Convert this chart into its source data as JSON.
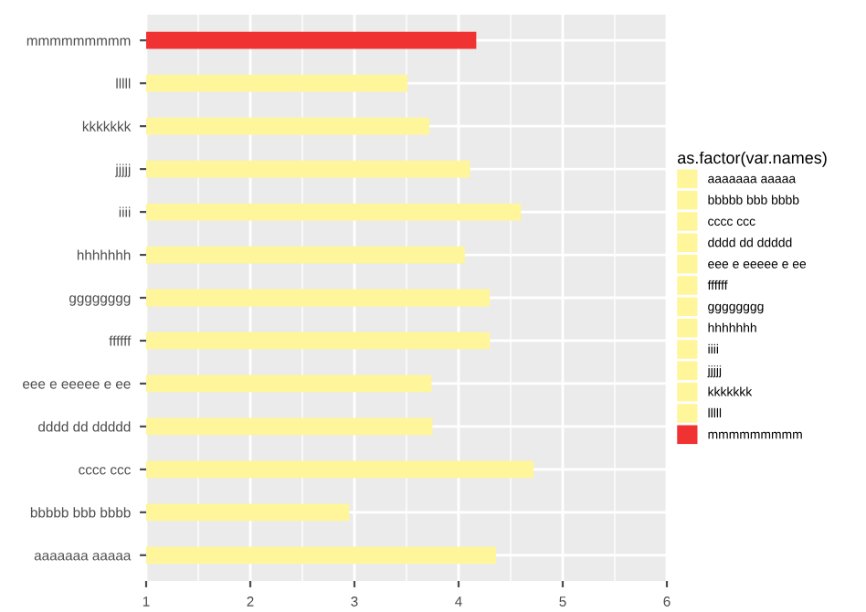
{
  "chart_data": {
    "type": "bar",
    "orientation": "horizontal",
    "legend_title": "as.factor(var.names)",
    "categories": [
      "mmmmmmmmm",
      "lllll",
      "kkkkkkk",
      "jjjjj",
      "iiii",
      "hhhhhhh",
      "gggggggg",
      "ffffff",
      "eee e eeeee e ee",
      "dddd dd ddddd",
      "cccc ccc",
      "bbbbb bbb bbbb",
      "aaaaaaa aaaaa"
    ],
    "series": [
      {
        "name": "aaaaaaa aaaaa",
        "color": "#fff59a",
        "values": [
          null,
          null,
          null,
          null,
          null,
          null,
          null,
          null,
          null,
          null,
          null,
          null,
          4.36
        ]
      },
      {
        "name": "bbbbb bbb bbbb",
        "color": "#fff59a",
        "values": [
          null,
          null,
          null,
          null,
          null,
          null,
          null,
          null,
          null,
          null,
          null,
          2.95,
          null
        ]
      },
      {
        "name": "cccc ccc",
        "color": "#fff59a",
        "values": [
          null,
          null,
          null,
          null,
          null,
          null,
          null,
          null,
          null,
          null,
          4.72,
          null,
          null
        ]
      },
      {
        "name": "dddd dd ddddd",
        "color": "#fff59a",
        "values": [
          null,
          null,
          null,
          null,
          null,
          null,
          null,
          null,
          null,
          3.75,
          null,
          null,
          null
        ]
      },
      {
        "name": "eee e eeeee e ee",
        "color": "#fff59a",
        "values": [
          null,
          null,
          null,
          null,
          null,
          null,
          null,
          null,
          3.74,
          null,
          null,
          null,
          null
        ]
      },
      {
        "name": "ffffff",
        "color": "#fff59a",
        "values": [
          null,
          null,
          null,
          null,
          null,
          null,
          null,
          4.3,
          null,
          null,
          null,
          null,
          null
        ]
      },
      {
        "name": "gggggggg",
        "color": "#fff59a",
        "values": [
          null,
          null,
          null,
          null,
          null,
          null,
          4.3,
          null,
          null,
          null,
          null,
          null,
          null
        ]
      },
      {
        "name": "hhhhhhh",
        "color": "#fff59a",
        "values": [
          null,
          null,
          null,
          null,
          null,
          4.06,
          null,
          null,
          null,
          null,
          null,
          null,
          null
        ]
      },
      {
        "name": "iiii",
        "color": "#fff59a",
        "values": [
          null,
          null,
          null,
          null,
          4.6,
          null,
          null,
          null,
          null,
          null,
          null,
          null,
          null
        ]
      },
      {
        "name": "jjjjj",
        "color": "#fff59a",
        "values": [
          null,
          null,
          null,
          4.11,
          null,
          null,
          null,
          null,
          null,
          null,
          null,
          null,
          null
        ]
      },
      {
        "name": "kkkkkkk",
        "color": "#fff59a",
        "values": [
          null,
          null,
          3.72,
          null,
          null,
          null,
          null,
          null,
          null,
          null,
          null,
          null,
          null
        ]
      },
      {
        "name": "lllll",
        "color": "#fff59a",
        "values": [
          null,
          3.51,
          null,
          null,
          null,
          null,
          null,
          null,
          null,
          null,
          null,
          null,
          null
        ]
      },
      {
        "name": "mmmmmmmmm",
        "color": "#f03232",
        "values": [
          4.17,
          null,
          null,
          null,
          null,
          null,
          null,
          null,
          null,
          null,
          null,
          null,
          null
        ]
      }
    ],
    "xlim": [
      1,
      6
    ],
    "xticks": [
      1,
      2,
      3,
      4,
      5,
      6
    ],
    "grid": true,
    "legend": "right"
  }
}
